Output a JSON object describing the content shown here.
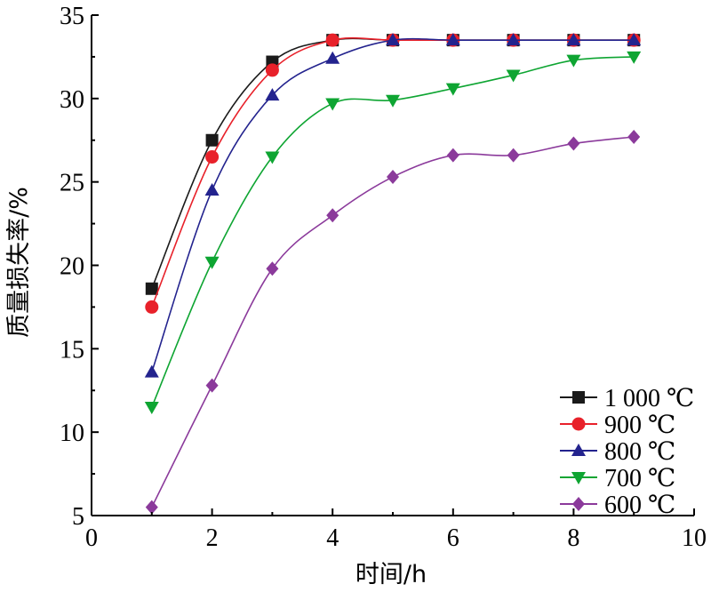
{
  "chart_data": {
    "type": "line",
    "xlabel": "时间/h",
    "ylabel": "质量损失率/%",
    "xlim": [
      0,
      10
    ],
    "ylim": [
      5,
      35
    ],
    "xticks": [
      0,
      2,
      4,
      6,
      8,
      10
    ],
    "yticks": [
      5,
      10,
      15,
      20,
      25,
      30,
      35
    ],
    "grid": false,
    "legend_position": "bottom-right",
    "x": [
      1,
      2,
      3,
      4,
      5,
      6,
      7,
      8,
      9
    ],
    "series": [
      {
        "name": "1 000 ℃",
        "color": "#1a1a1a",
        "marker": "square",
        "values": [
          18.6,
          27.5,
          32.2,
          33.5,
          33.5,
          33.5,
          33.5,
          33.5,
          33.5
        ]
      },
      {
        "name": "900 ℃",
        "color": "#e8212a",
        "marker": "circle",
        "values": [
          17.5,
          26.5,
          31.7,
          33.5,
          33.5,
          33.5,
          33.5,
          33.5,
          33.5
        ]
      },
      {
        "name": "800 ℃",
        "color": "#23238e",
        "marker": "triangle-up",
        "values": [
          13.6,
          24.5,
          30.2,
          32.4,
          33.5,
          33.5,
          33.5,
          33.5,
          33.5
        ]
      },
      {
        "name": "700 ℃",
        "color": "#0ea532",
        "marker": "triangle-down",
        "values": [
          11.5,
          20.2,
          26.5,
          29.7,
          29.9,
          30.6,
          31.4,
          32.3,
          32.5
        ]
      },
      {
        "name": "600 ℃",
        "color": "#8b3a9b",
        "marker": "diamond",
        "values": [
          5.5,
          12.8,
          19.8,
          23.0,
          25.3,
          26.6,
          26.6,
          27.3,
          27.7
        ]
      }
    ]
  }
}
